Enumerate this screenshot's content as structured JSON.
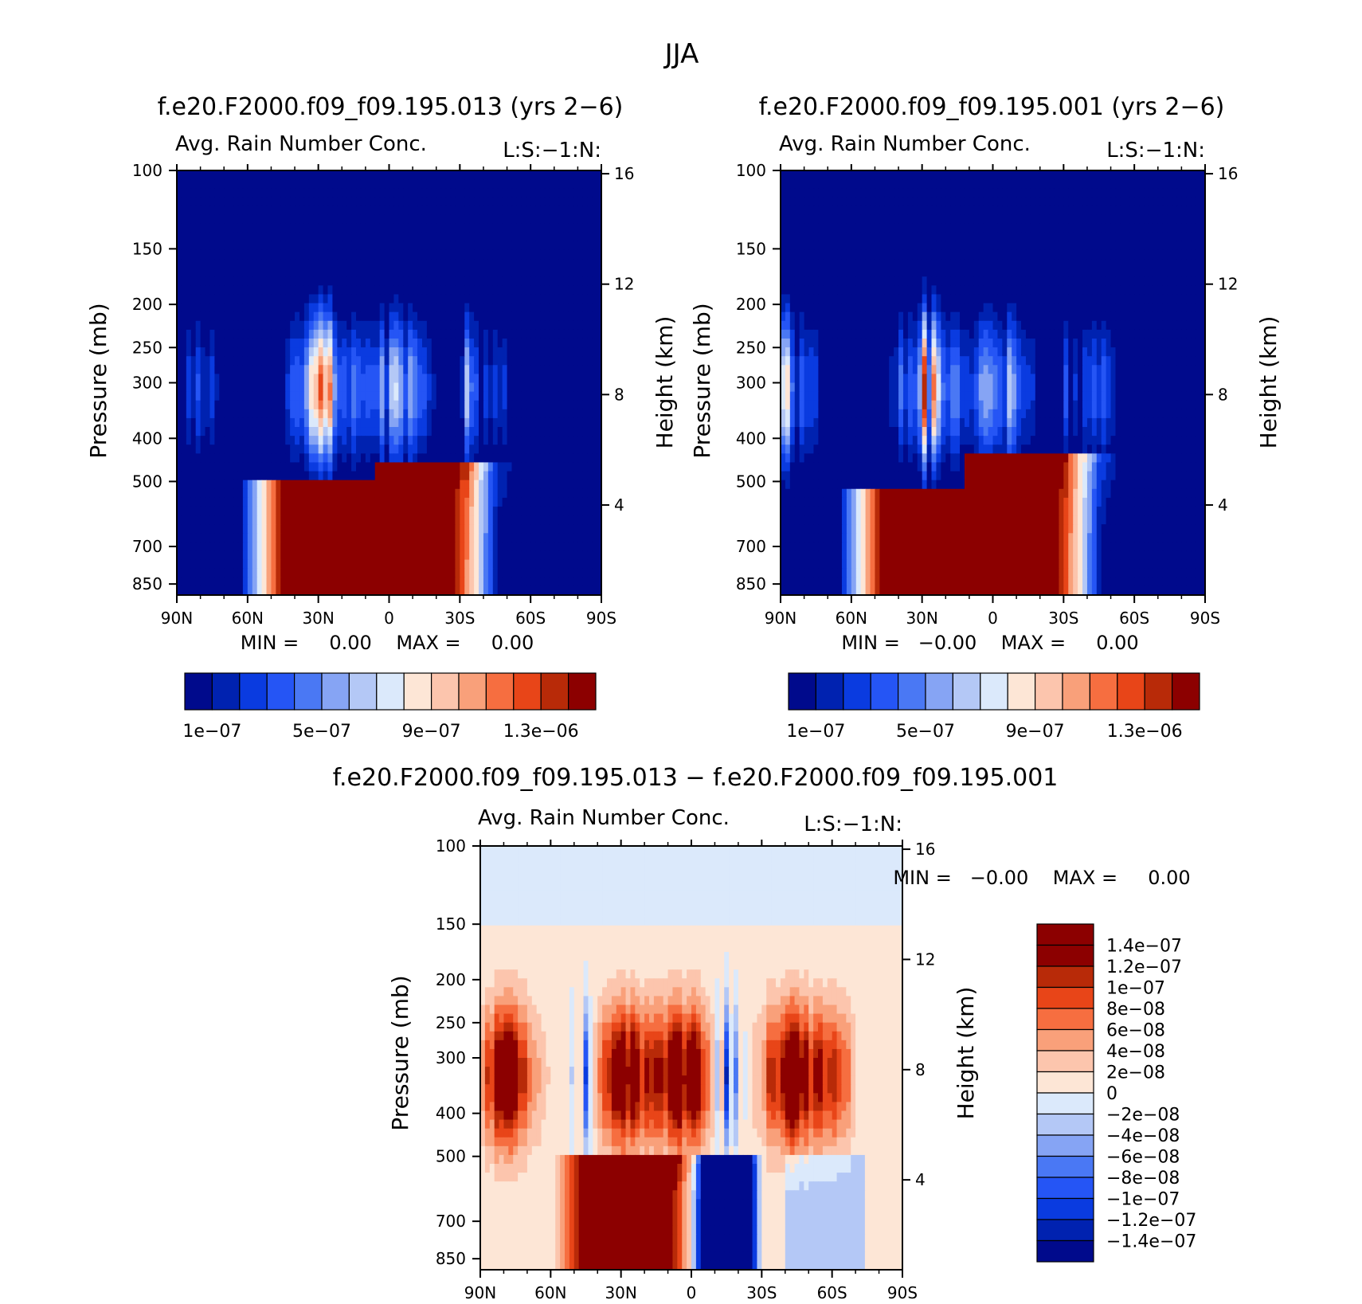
{
  "figure_title": "JJA",
  "panels": [
    {
      "id": "p1",
      "title": "f.e20.F2000.f09_f09.195.013 (yrs 2−6)",
      "subtitle_left": "Avg. Rain Number Conc.",
      "subtitle_right": "L:S:−1:N:",
      "ylabel": "Pressure (mb)",
      "ylabel_right": "Height (km)",
      "stats": "MIN =     0.00    MAX =     0.00",
      "colorbar_labels": [
        "1e−07",
        "5e−07",
        "9e−07",
        "1.3e−06"
      ]
    },
    {
      "id": "p2",
      "title": "f.e20.F2000.f09_f09.195.001 (yrs 2−6)",
      "subtitle_left": "Avg. Rain Number Conc.",
      "subtitle_right": "L:S:−1:N:",
      "ylabel": "Pressure (mb)",
      "ylabel_right": "Height (km)",
      "stats": "MIN =   −0.00    MAX =     0.00",
      "colorbar_labels": [
        "1e−07",
        "5e−07",
        "9e−07",
        "1.3e−06"
      ]
    },
    {
      "id": "p3",
      "title": "f.e20.F2000.f09_f09.195.013 − f.e20.F2000.f09_f09.195.001",
      "subtitle_left": "Avg. Rain Number Conc.",
      "subtitle_right": "L:S:−1:N:",
      "ylabel": "Pressure (mb)",
      "ylabel_right": "Height (km)",
      "stats": "MIN =   −0.00    MAX =     0.00",
      "colorbar_labels": [
        "1.4e−07",
        "1.2e−07",
        "1e−07",
        "8e−08",
        "6e−08",
        "4e−08",
        "2e−08",
        "0",
        "−2e−08",
        "−4e−08",
        "−6e−08",
        "−8e−08",
        "−1e−07",
        "−1.2e−07",
        "−1.4e−07"
      ]
    }
  ],
  "chart_data": [
    {
      "type": "heatmap",
      "panel": "p1",
      "title": "f.e20.F2000.f09_f09.195.013 (yrs 2−6)",
      "variable": "Avg. Rain Number Conc.",
      "x_ticks": [
        "90N",
        "60N",
        "30N",
        "0",
        "30S",
        "60S",
        "90S"
      ],
      "x_range_deg": [
        90,
        -90
      ],
      "y_ticks": [
        100,
        150,
        200,
        250,
        300,
        400,
        500,
        700,
        850
      ],
      "y_range_mb": [
        100,
        900
      ],
      "y2_ticks": [
        16,
        12,
        8,
        4
      ],
      "ylabel": "Pressure (mb)",
      "y2label": "Height (km)",
      "levels": [
        1e-07,
        2e-07,
        3e-07,
        4e-07,
        5e-07,
        6e-07,
        7e-07,
        8e-07,
        9e-07,
        1e-06,
        1.1e-06,
        1.2e-06,
        1.3e-06,
        1.4e-06,
        1.5e-06
      ],
      "min": 0.0,
      "max": 0.0
    },
    {
      "type": "heatmap",
      "panel": "p2",
      "title": "f.e20.F2000.f09_f09.195.001 (yrs 2−6)",
      "variable": "Avg. Rain Number Conc.",
      "x_ticks": [
        "90N",
        "60N",
        "30N",
        "0",
        "30S",
        "60S",
        "90S"
      ],
      "x_range_deg": [
        90,
        -90
      ],
      "y_ticks": [
        100,
        150,
        200,
        250,
        300,
        400,
        500,
        700,
        850
      ],
      "y_range_mb": [
        100,
        900
      ],
      "y2_ticks": [
        16,
        12,
        8,
        4
      ],
      "ylabel": "Pressure (mb)",
      "y2label": "Height (km)",
      "levels": [
        1e-07,
        2e-07,
        3e-07,
        4e-07,
        5e-07,
        6e-07,
        7e-07,
        8e-07,
        9e-07,
        1e-06,
        1.1e-06,
        1.2e-06,
        1.3e-06,
        1.4e-06,
        1.5e-06
      ],
      "min": -0.0,
      "max": 0.0
    },
    {
      "type": "heatmap",
      "panel": "p3",
      "title": "f.e20.F2000.f09_f09.195.013 − f.e20.F2000.f09_f09.195.001",
      "variable": "Avg. Rain Number Conc.",
      "x_ticks": [
        "90N",
        "60N",
        "30N",
        "0",
        "30S",
        "60S",
        "90S"
      ],
      "x_range_deg": [
        90,
        -90
      ],
      "y_ticks": [
        100,
        150,
        200,
        250,
        300,
        400,
        500,
        700,
        850
      ],
      "y_range_mb": [
        100,
        900
      ],
      "y2_ticks": [
        16,
        12,
        8,
        4
      ],
      "ylabel": "Pressure (mb)",
      "y2label": "Height (km)",
      "levels": [
        1.4e-07,
        1.2e-07,
        1e-07,
        8e-08,
        6e-08,
        4e-08,
        2e-08,
        0,
        -2e-08,
        -4e-08,
        -6e-08,
        -8e-08,
        -1e-07,
        -1.2e-07,
        -1.4e-07
      ],
      "min": -0.0,
      "max": 0.0
    }
  ],
  "colormaps": {
    "seq": [
      "#000a8c",
      "#0022b0",
      "#0a3be0",
      "#2555f5",
      "#4a78f4",
      "#86a4f4",
      "#b4c8f6",
      "#dbe9fb",
      "#fde6d6",
      "#fcc5ad",
      "#f9a07a",
      "#f66e40",
      "#e84518",
      "#b82a08",
      "#8c0000"
    ],
    "diff": [
      "#8c0000",
      "#b82a08",
      "#e84518",
      "#f66e40",
      "#f9a07a",
      "#fcc5ad",
      "#fde6d6",
      "#dbe9fb",
      "#b4c8f6",
      "#86a4f4",
      "#4a78f4",
      "#2555f5",
      "#0a3be0",
      "#0022b0",
      "#000a8c"
    ]
  }
}
